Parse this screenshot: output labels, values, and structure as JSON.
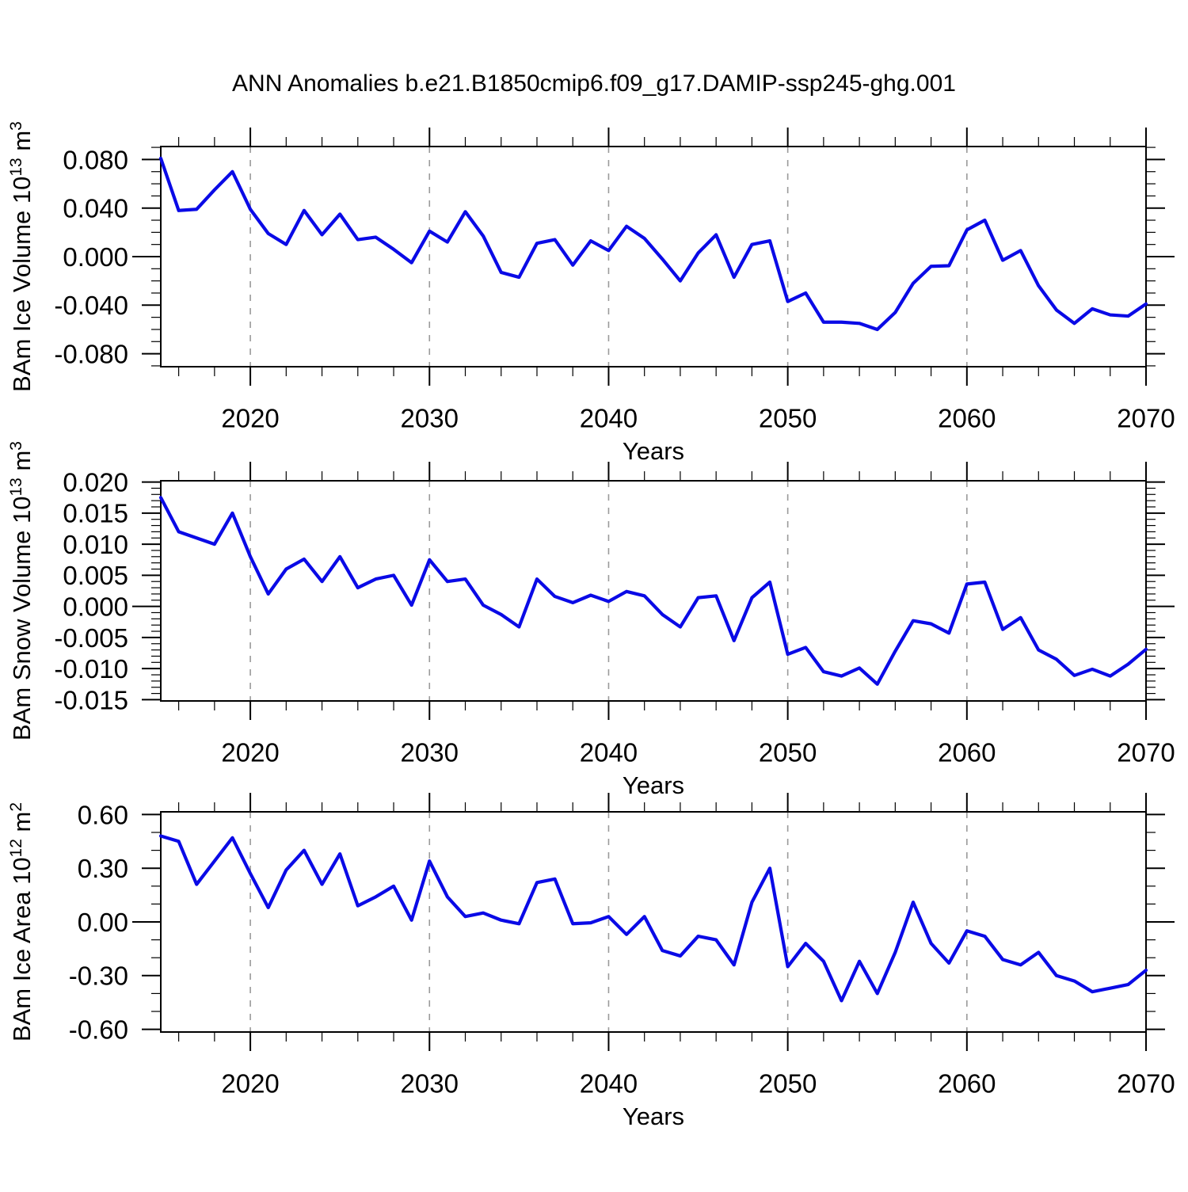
{
  "title": "ANN Anomalies b.e21.B1850cmip6.f09_g17.DAMIP-ssp245-ghg.001",
  "xlabel": "Years",
  "colors": {
    "line": "#0a0ae6",
    "frame": "#000000",
    "grid": "#9a9a9a",
    "text": "#000000",
    "background": "#ffffff"
  },
  "x": {
    "start": 2015,
    "end": 2070,
    "minor_step": 2,
    "tick_labels": [
      {
        "v": 2020,
        "label": "2020"
      },
      {
        "v": 2030,
        "label": "2030"
      },
      {
        "v": 2040,
        "label": "2040"
      },
      {
        "v": 2050,
        "label": "2050"
      },
      {
        "v": 2060,
        "label": "2060"
      },
      {
        "v": 2070,
        "label": "2070"
      }
    ],
    "grid_years": [
      2020,
      2030,
      2040,
      2050,
      2060
    ]
  },
  "chart_data": [
    {
      "type": "line",
      "name": "bam-ice-volume",
      "ylabel_segments": [
        {
          "t": "BAm Ice Volume 10"
        },
        {
          "t": "13",
          "sup": true
        },
        {
          "t": " m"
        },
        {
          "t": "3",
          "sup": true
        }
      ],
      "ylim": [
        -0.0907,
        0.0907
      ],
      "yminor": 0.01,
      "yticks": [
        {
          "v": 0.08,
          "label": "0.080"
        },
        {
          "v": 0.04,
          "label": "0.040"
        },
        {
          "v": 0.0,
          "label": "0.000"
        },
        {
          "v": -0.04,
          "label": "-0.040"
        },
        {
          "v": -0.08,
          "label": "-0.080"
        }
      ],
      "x_start": 2015,
      "values": [
        0.081,
        0.038,
        0.039,
        0.055,
        0.07,
        0.039,
        0.019,
        0.01,
        0.038,
        0.018,
        0.035,
        0.014,
        0.016,
        0.006,
        -0.005,
        0.021,
        0.012,
        0.037,
        0.017,
        -0.013,
        -0.017,
        0.011,
        0.014,
        -0.007,
        0.013,
        0.005,
        0.025,
        0.015,
        -0.002,
        -0.02,
        0.003,
        0.018,
        -0.017,
        0.01,
        0.013,
        -0.037,
        -0.03,
        -0.054,
        -0.054,
        -0.055,
        -0.06,
        -0.046,
        -0.022,
        -0.008,
        -0.0075,
        0.022,
        0.03,
        -0.003,
        0.005,
        -0.024,
        -0.044,
        -0.055,
        -0.043,
        -0.048,
        -0.049,
        -0.039
      ]
    },
    {
      "type": "line",
      "name": "bam-snow-volume",
      "ylabel_segments": [
        {
          "t": "BAm Snow Volume 10"
        },
        {
          "t": "13",
          "sup": true
        },
        {
          "t": " m"
        },
        {
          "t": "3",
          "sup": true
        }
      ],
      "ylim": [
        -0.0152,
        0.0202
      ],
      "yminor": 0.001,
      "yticks": [
        {
          "v": 0.02,
          "label": "0.020"
        },
        {
          "v": 0.015,
          "label": "0.015"
        },
        {
          "v": 0.01,
          "label": "0.010"
        },
        {
          "v": 0.005,
          "label": "0.005"
        },
        {
          "v": 0.0,
          "label": "0.000"
        },
        {
          "v": -0.005,
          "label": "-0.005"
        },
        {
          "v": -0.01,
          "label": "-0.010"
        },
        {
          "v": -0.015,
          "label": "-0.015"
        }
      ],
      "x_start": 2015,
      "values": [
        0.0175,
        0.012,
        0.011,
        0.01,
        0.015,
        0.008,
        0.002,
        0.006,
        0.0076,
        0.004,
        0.008,
        0.003,
        0.0044,
        0.005,
        0.0002,
        0.0075,
        0.004,
        0.0044,
        0.0002,
        -0.0013,
        -0.0033,
        0.0044,
        0.0016,
        0.0006,
        0.0018,
        0.0008,
        0.0024,
        0.0017,
        -0.0013,
        -0.0033,
        0.0014,
        0.0017,
        -0.0055,
        0.0014,
        0.0039,
        -0.0077,
        -0.0066,
        -0.0105,
        -0.0112,
        -0.0099,
        -0.0125,
        -0.0072,
        -0.0023,
        -0.0028,
        -0.0043,
        0.0036,
        0.0039,
        -0.0037,
        -0.0018,
        -0.007,
        -0.0085,
        -0.0111,
        -0.0101,
        -0.0112,
        -0.0093,
        -0.0069
      ]
    },
    {
      "type": "line",
      "name": "bam-ice-area",
      "ylabel_segments": [
        {
          "t": "BAm Ice Area 10"
        },
        {
          "t": "12",
          "sup": true
        },
        {
          "t": " m"
        },
        {
          "t": "2",
          "sup": true
        }
      ],
      "ylim": [
        -0.615,
        0.615
      ],
      "yminor": 0.1,
      "yticks": [
        {
          "v": 0.6,
          "label": "0.60"
        },
        {
          "v": 0.3,
          "label": "0.30"
        },
        {
          "v": 0.0,
          "label": "0.00"
        },
        {
          "v": -0.3,
          "label": "-0.30"
        },
        {
          "v": -0.6,
          "label": "-0.60"
        }
      ],
      "x_start": 2015,
      "values": [
        0.48,
        0.45,
        0.21,
        0.34,
        0.47,
        0.27,
        0.08,
        0.29,
        0.4,
        0.21,
        0.38,
        0.09,
        0.14,
        0.2,
        0.01,
        0.34,
        0.14,
        0.03,
        0.05,
        0.01,
        -0.01,
        0.22,
        0.24,
        -0.01,
        -0.005,
        0.03,
        -0.07,
        0.03,
        -0.16,
        -0.19,
        -0.08,
        -0.1,
        -0.24,
        0.11,
        0.3,
        -0.25,
        -0.12,
        -0.22,
        -0.44,
        -0.22,
        -0.4,
        -0.17,
        0.11,
        -0.12,
        -0.23,
        -0.05,
        -0.08,
        -0.21,
        -0.24,
        -0.17,
        -0.3,
        -0.33,
        -0.39,
        -0.37,
        -0.35,
        -0.27
      ]
    }
  ]
}
